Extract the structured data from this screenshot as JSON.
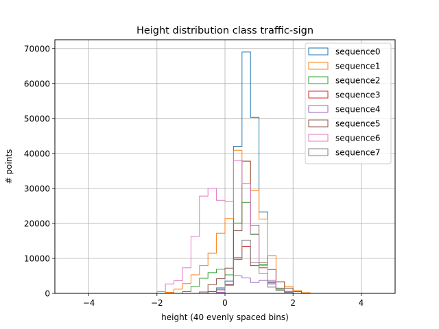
{
  "chart_data": {
    "type": "histogram",
    "title": "Height distribution class traffic-sign",
    "xlabel": "height (40 evenly spaced bins)",
    "ylabel": "# points",
    "xlim": [
      -5,
      5
    ],
    "ylim": [
      0,
      72500
    ],
    "xticks": [
      -4,
      -2,
      0,
      2,
      4
    ],
    "xtick_labels": [
      "−4",
      "−2",
      "0",
      "2",
      "4"
    ],
    "yticks": [
      0,
      10000,
      20000,
      30000,
      40000,
      50000,
      60000,
      70000
    ],
    "ytick_labels": [
      "0",
      "10000",
      "20000",
      "30000",
      "40000",
      "50000",
      "60000",
      "70000"
    ],
    "grid": true,
    "legend_position": "top-right",
    "bin_edges": [
      -5,
      -4.75,
      -4.5,
      -4.25,
      -4,
      -3.75,
      -3.5,
      -3.25,
      -3,
      -2.75,
      -2.5,
      -2.25,
      -2,
      -1.75,
      -1.5,
      -1.25,
      -1,
      -0.75,
      -0.5,
      -0.25,
      0,
      0.25,
      0.5,
      0.75,
      1,
      1.25,
      1.5,
      1.75,
      2,
      2.25,
      2.5,
      2.75,
      3,
      3.25,
      3.5,
      3.75,
      4,
      4.25,
      4.5,
      4.75,
      5
    ],
    "series": [
      {
        "name": "sequence0",
        "color": "#1f77b4",
        "values": [
          0,
          0,
          0,
          0,
          0,
          0,
          0,
          0,
          0,
          0,
          0,
          0,
          0,
          0,
          0,
          0,
          0,
          0,
          500,
          1500,
          3500,
          42000,
          69000,
          50300,
          23300,
          3000,
          1200,
          500,
          0,
          0,
          0,
          0,
          0,
          0,
          0,
          0,
          0,
          0,
          0,
          0
        ]
      },
      {
        "name": "sequence1",
        "color": "#ff7f0e",
        "values": [
          0,
          0,
          0,
          0,
          0,
          0,
          0,
          0,
          0,
          0,
          0,
          0,
          0,
          300,
          1200,
          2800,
          5300,
          7900,
          11500,
          17200,
          21400,
          40900,
          37800,
          29500,
          21200,
          10800,
          3300,
          1900,
          800,
          200,
          0,
          0,
          0,
          0,
          0,
          0,
          0,
          0,
          0,
          0
        ]
      },
      {
        "name": "sequence2",
        "color": "#2ca02c",
        "values": [
          0,
          0,
          0,
          0,
          0,
          0,
          0,
          0,
          0,
          0,
          0,
          0,
          0,
          0,
          0,
          500,
          2000,
          4300,
          5900,
          6900,
          5300,
          20100,
          26000,
          16800,
          8300,
          3700,
          1500,
          400,
          0,
          0,
          0,
          0,
          0,
          0,
          0,
          0,
          0,
          0,
          0,
          0
        ]
      },
      {
        "name": "sequence3",
        "color": "#d62728",
        "values": [
          0,
          0,
          0,
          0,
          0,
          0,
          0,
          0,
          0,
          0,
          0,
          0,
          0,
          0,
          0,
          0,
          0,
          0,
          500,
          1000,
          2500,
          10200,
          13400,
          7900,
          7300,
          3300,
          900,
          300,
          0,
          0,
          0,
          0,
          0,
          0,
          0,
          0,
          0,
          0,
          0,
          0
        ]
      },
      {
        "name": "sequence4",
        "color": "#9467bd",
        "values": [
          0,
          0,
          0,
          0,
          0,
          0,
          0,
          0,
          0,
          0,
          0,
          0,
          0,
          0,
          0,
          0,
          0,
          0,
          0,
          300,
          2300,
          5000,
          4400,
          3100,
          3700,
          2700,
          1200,
          300,
          0,
          0,
          0,
          0,
          0,
          0,
          0,
          0,
          0,
          0,
          0,
          0
        ]
      },
      {
        "name": "sequence5",
        "color": "#8c564b",
        "values": [
          0,
          0,
          0,
          0,
          0,
          0,
          0,
          0,
          0,
          0,
          0,
          0,
          0,
          0,
          0,
          0,
          0,
          400,
          2500,
          4200,
          7200,
          17900,
          37800,
          19500,
          8800,
          6800,
          3300,
          1500,
          500,
          0,
          0,
          0,
          0,
          0,
          0,
          0,
          0,
          0,
          0,
          0
        ]
      },
      {
        "name": "sequence6",
        "color": "#e377c2",
        "values": [
          0,
          0,
          0,
          0,
          0,
          0,
          0,
          0,
          0,
          0,
          0,
          0,
          500,
          2700,
          3600,
          7300,
          16300,
          27800,
          30000,
          26600,
          26300,
          38000,
          31400,
          17000,
          7900,
          3700,
          1200,
          600,
          0,
          0,
          0,
          0,
          0,
          0,
          0,
          0,
          0,
          0,
          0,
          0
        ]
      },
      {
        "name": "sequence7",
        "color": "#7f7f7f",
        "values": [
          0,
          0,
          0,
          0,
          0,
          0,
          0,
          0,
          0,
          0,
          0,
          0,
          0,
          0,
          0,
          0,
          0,
          0,
          0,
          1600,
          2600,
          9700,
          15200,
          8800,
          5700,
          1800,
          900,
          300,
          0,
          0,
          0,
          0,
          0,
          0,
          0,
          0,
          0,
          0,
          0,
          0
        ]
      }
    ]
  }
}
